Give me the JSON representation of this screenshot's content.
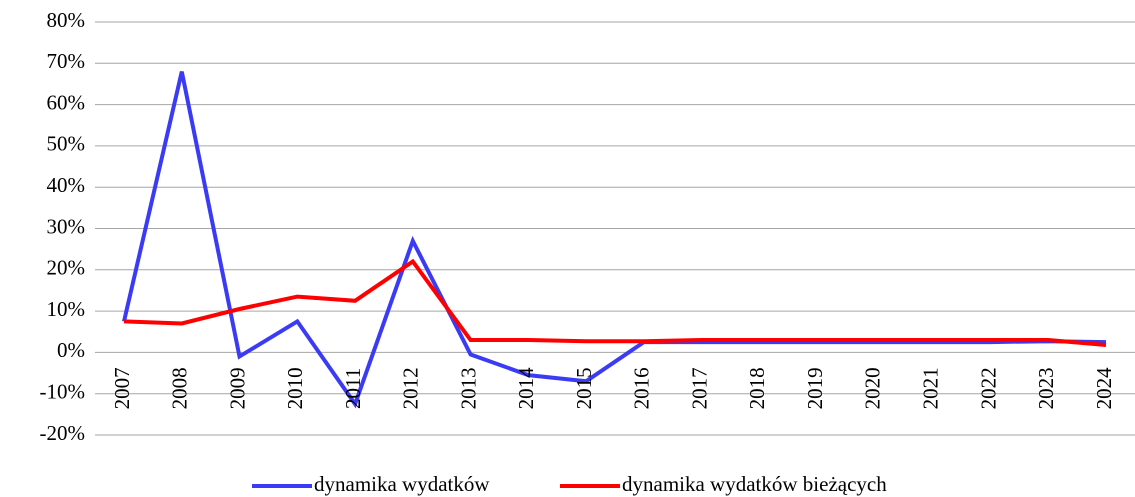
{
  "chart_data": {
    "type": "line",
    "categories": [
      "2007",
      "2008",
      "2009",
      "2010",
      "2011",
      "2012",
      "2013",
      "2014",
      "2015",
      "2016",
      "2017",
      "2018",
      "2019",
      "2020",
      "2021",
      "2022",
      "2023",
      "2024"
    ],
    "series": [
      {
        "name": "dynamika wydatków",
        "color": "#3b3bf5",
        "values": [
          7.5,
          68,
          -1,
          7.5,
          -12.5,
          27,
          -0.5,
          -5.5,
          -7,
          2.5,
          2.5,
          2.5,
          2.5,
          2.5,
          2.5,
          2.5,
          2.7,
          2.5
        ]
      },
      {
        "name": "dynamika wydatków bieżących",
        "color": "#ff0000",
        "values": [
          7.5,
          7,
          10.5,
          13.5,
          12.5,
          22,
          3,
          3,
          2.7,
          2.7,
          3,
          3,
          3,
          3,
          3,
          3,
          3,
          1.8
        ]
      }
    ],
    "ylim": [
      -20,
      80
    ],
    "yticks": [
      {
        "value": -20,
        "label": "-20%"
      },
      {
        "value": -10,
        "label": "-10%"
      },
      {
        "value": 0,
        "label": "0%"
      },
      {
        "value": 10,
        "label": "10%"
      },
      {
        "value": 20,
        "label": "20%"
      },
      {
        "value": 30,
        "label": "30%"
      },
      {
        "value": 40,
        "label": "40%"
      },
      {
        "value": 50,
        "label": "50%"
      },
      {
        "value": 60,
        "label": "60%"
      },
      {
        "value": 70,
        "label": "70%"
      },
      {
        "value": 80,
        "label": "80%"
      }
    ],
    "grid": true,
    "legend": "bottom"
  }
}
